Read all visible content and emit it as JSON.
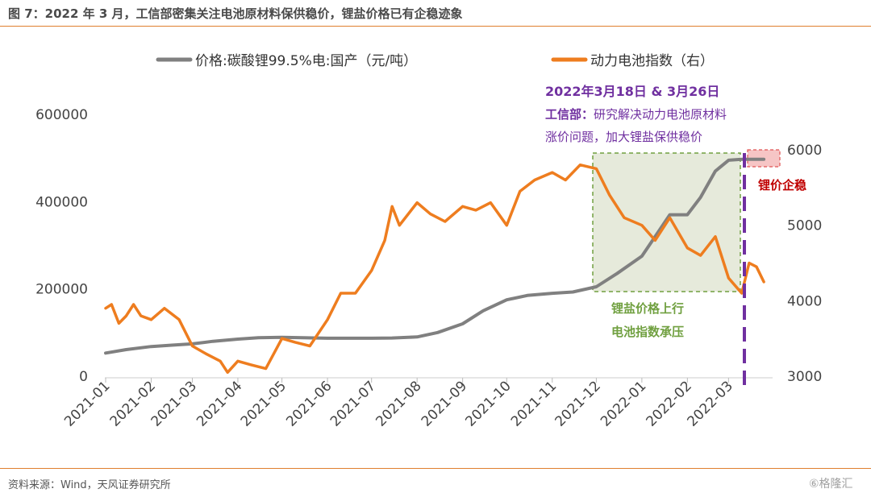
{
  "caption": "图 7：2022 年 3 月，工信部密集关注电池原材料保供稳价，锂盐价格已有企稳迹象",
  "source": "资料来源：Wind，天风证券研究所",
  "watermark": "⑥格隆汇",
  "colors": {
    "price": "#808080",
    "index": "#ee7d1f",
    "accent": "#e07f2e",
    "purple": "#7030a0",
    "green": "#70a040",
    "red": "#c00000"
  },
  "chart_data": {
    "type": "line",
    "title": "",
    "x_labels": [
      "2021-01",
      "2021-02",
      "2021-03",
      "2021-04",
      "2021-05",
      "2021-06",
      "2021-07",
      "2021-08",
      "2021-09",
      "2021-10",
      "2021-11",
      "2021-12",
      "2022-01",
      "2022-02",
      "2022-03"
    ],
    "ylim_left": [
      0,
      600000
    ],
    "yticks_left": [
      "0",
      "200000",
      "400000",
      "600000"
    ],
    "ylim_right": [
      3000,
      6000
    ],
    "yticks_right": [
      "3000",
      "4000",
      "5000",
      "6000"
    ],
    "series": [
      {
        "name": "价格:碳酸锂99.5%电:国产（元/吨）",
        "axis": "left",
        "color": "#808080",
        "points": [
          [
            "2021-01-01",
            53000
          ],
          [
            "2021-01-15",
            61000
          ],
          [
            "2021-02-01",
            68000
          ],
          [
            "2021-02-15",
            71000
          ],
          [
            "2021-03-01",
            74000
          ],
          [
            "2021-03-15",
            80000
          ],
          [
            "2021-04-01",
            85000
          ],
          [
            "2021-04-15",
            88000
          ],
          [
            "2021-05-01",
            89000
          ],
          [
            "2021-05-15",
            88000
          ],
          [
            "2021-06-01",
            87000
          ],
          [
            "2021-07-01",
            87000
          ],
          [
            "2021-07-15",
            87500
          ],
          [
            "2021-08-01",
            90000
          ],
          [
            "2021-08-15",
            100000
          ],
          [
            "2021-09-01",
            120000
          ],
          [
            "2021-09-15",
            150000
          ],
          [
            "2021-10-01",
            175000
          ],
          [
            "2021-10-15",
            185000
          ],
          [
            "2021-11-01",
            190000
          ],
          [
            "2021-11-15",
            193000
          ],
          [
            "2021-12-01",
            205000
          ],
          [
            "2021-12-15",
            235000
          ],
          [
            "2022-01-01",
            275000
          ],
          [
            "2022-01-10",
            320000
          ],
          [
            "2022-01-20",
            370000
          ],
          [
            "2022-02-01",
            370000
          ],
          [
            "2022-02-10",
            410000
          ],
          [
            "2022-02-20",
            470000
          ],
          [
            "2022-03-01",
            495000
          ],
          [
            "2022-03-10",
            497000
          ],
          [
            "2022-03-25",
            497000
          ]
        ]
      },
      {
        "name": "动力电池指数（右）",
        "axis": "right",
        "color": "#ee7d1f",
        "points": [
          [
            "2021-01-01",
            3900
          ],
          [
            "2021-01-05",
            3950
          ],
          [
            "2021-01-10",
            3700
          ],
          [
            "2021-01-15",
            3800
          ],
          [
            "2021-01-20",
            3950
          ],
          [
            "2021-01-25",
            3800
          ],
          [
            "2021-02-01",
            3750
          ],
          [
            "2021-02-10",
            3900
          ],
          [
            "2021-02-20",
            3750
          ],
          [
            "2021-03-01",
            3400
          ],
          [
            "2021-03-10",
            3300
          ],
          [
            "2021-03-20",
            3200
          ],
          [
            "2021-03-25",
            3050
          ],
          [
            "2021-04-01",
            3200
          ],
          [
            "2021-04-10",
            3150
          ],
          [
            "2021-04-20",
            3100
          ],
          [
            "2021-05-01",
            3500
          ],
          [
            "2021-05-10",
            3450
          ],
          [
            "2021-05-20",
            3400
          ],
          [
            "2021-06-01",
            3750
          ],
          [
            "2021-06-10",
            4100
          ],
          [
            "2021-06-20",
            4100
          ],
          [
            "2021-07-01",
            4400
          ],
          [
            "2021-07-10",
            4800
          ],
          [
            "2021-07-15",
            5250
          ],
          [
            "2021-07-20",
            5000
          ],
          [
            "2021-08-01",
            5300
          ],
          [
            "2021-08-10",
            5150
          ],
          [
            "2021-08-20",
            5050
          ],
          [
            "2021-09-01",
            5250
          ],
          [
            "2021-09-10",
            5200
          ],
          [
            "2021-09-20",
            5300
          ],
          [
            "2021-10-01",
            5000
          ],
          [
            "2021-10-10",
            5450
          ],
          [
            "2021-10-20",
            5600
          ],
          [
            "2021-11-01",
            5700
          ],
          [
            "2021-11-10",
            5600
          ],
          [
            "2021-11-20",
            5800
          ],
          [
            "2021-12-01",
            5750
          ],
          [
            "2021-12-10",
            5400
          ],
          [
            "2021-12-20",
            5100
          ],
          [
            "2022-01-01",
            5000
          ],
          [
            "2022-01-10",
            4800
          ],
          [
            "2022-01-20",
            5100
          ],
          [
            "2022-02-01",
            4700
          ],
          [
            "2022-02-10",
            4600
          ],
          [
            "2022-02-20",
            4850
          ],
          [
            "2022-03-01",
            4300
          ],
          [
            "2022-03-10",
            4100
          ],
          [
            "2022-03-15",
            4500
          ],
          [
            "2022-03-20",
            4450
          ],
          [
            "2022-03-25",
            4250
          ]
        ]
      }
    ],
    "annotations": {
      "date_title": "2022年3月18日 & 3月26日",
      "miit_prefix": "工信部：",
      "miit_line1": "研究解决动力电池原材料",
      "miit_line2": "涨价问题，加大锂盐保供稳价",
      "green_line1": "锂盐价格上行",
      "green_line2": "电池指数承压",
      "red_label": "锂价企稳"
    }
  }
}
